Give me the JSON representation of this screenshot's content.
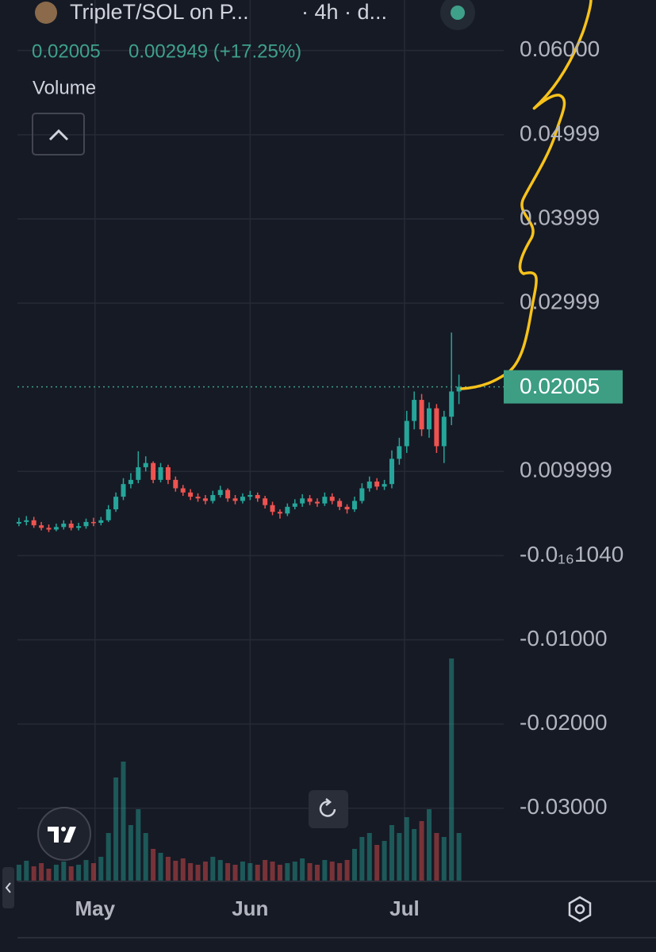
{
  "header": {
    "symbol": "TripleT/SOL on P...",
    "interval": "· 4h · d...",
    "price": "0.02005",
    "change": "0.002949 (+17.25%)",
    "study": "Volume"
  },
  "chart_data": {
    "type": "candlestick",
    "up_color": "#26a69a",
    "down_color": "#ef5350",
    "open": [
      0.0038,
      0.004,
      0.0042,
      0.0036,
      0.0033,
      0.0031,
      0.0034,
      0.0038,
      0.0033,
      0.0035,
      0.004,
      0.0039,
      0.0042,
      0.0055,
      0.007,
      0.0085,
      0.009,
      0.0105,
      0.011,
      0.009,
      0.0105,
      0.009,
      0.008,
      0.0075,
      0.007,
      0.0068,
      0.0065,
      0.0072,
      0.0078,
      0.0068,
      0.0065,
      0.007,
      0.0072,
      0.0068,
      0.006,
      0.0052,
      0.005,
      0.0058,
      0.0062,
      0.0068,
      0.0064,
      0.0062,
      0.007,
      0.0065,
      0.0058,
      0.0055,
      0.0065,
      0.008,
      0.0088,
      0.0082,
      0.0085,
      0.0115,
      0.013,
      0.016,
      0.0185,
      0.015,
      0.0175,
      0.013,
      0.0165,
      0.0195
    ],
    "high": [
      0.0045,
      0.0047,
      0.0046,
      0.004,
      0.0037,
      0.0038,
      0.0042,
      0.0042,
      0.0039,
      0.0044,
      0.0045,
      0.0046,
      0.006,
      0.0075,
      0.0092,
      0.0098,
      0.0124,
      0.0118,
      0.0112,
      0.011,
      0.0108,
      0.0094,
      0.0084,
      0.0079,
      0.0074,
      0.0072,
      0.0077,
      0.0083,
      0.008,
      0.0072,
      0.0074,
      0.0077,
      0.0075,
      0.0071,
      0.0064,
      0.0055,
      0.0062,
      0.0067,
      0.0073,
      0.0072,
      0.0068,
      0.0075,
      0.0074,
      0.0068,
      0.0061,
      0.007,
      0.0086,
      0.0094,
      0.0092,
      0.009,
      0.0125,
      0.014,
      0.0172,
      0.0195,
      0.0192,
      0.0182,
      0.018,
      0.0172,
      0.0265,
      0.0215
    ],
    "low": [
      0.0035,
      0.0036,
      0.0033,
      0.003,
      0.0028,
      0.0029,
      0.0031,
      0.003,
      0.003,
      0.0032,
      0.0035,
      0.0036,
      0.004,
      0.0052,
      0.0066,
      0.008,
      0.0086,
      0.01,
      0.0086,
      0.0087,
      0.0085,
      0.0076,
      0.0071,
      0.0066,
      0.0064,
      0.0061,
      0.0062,
      0.0069,
      0.0064,
      0.0061,
      0.0062,
      0.0066,
      0.0064,
      0.0056,
      0.0048,
      0.0044,
      0.0047,
      0.0055,
      0.0058,
      0.006,
      0.0058,
      0.0059,
      0.0061,
      0.0054,
      0.005,
      0.0052,
      0.0062,
      0.0076,
      0.0078,
      0.0078,
      0.008,
      0.0108,
      0.0122,
      0.015,
      0.0142,
      0.014,
      0.0122,
      0.011,
      0.0155,
      0.018
    ],
    "close": [
      0.004,
      0.0042,
      0.0036,
      0.0033,
      0.0031,
      0.0034,
      0.0038,
      0.0033,
      0.0035,
      0.004,
      0.0039,
      0.0042,
      0.0055,
      0.007,
      0.0085,
      0.009,
      0.0105,
      0.011,
      0.009,
      0.0105,
      0.009,
      0.008,
      0.0075,
      0.007,
      0.0068,
      0.0065,
      0.0072,
      0.0078,
      0.0068,
      0.0065,
      0.007,
      0.0072,
      0.0068,
      0.006,
      0.0052,
      0.005,
      0.0058,
      0.0062,
      0.0068,
      0.0064,
      0.0062,
      0.007,
      0.0065,
      0.0058,
      0.0055,
      0.0065,
      0.008,
      0.0088,
      0.0082,
      0.0085,
      0.0115,
      0.013,
      0.016,
      0.0185,
      0.015,
      0.0175,
      0.013,
      0.0165,
      0.0195,
      0.02005
    ],
    "volume": [
      20,
      25,
      18,
      22,
      15,
      20,
      24,
      18,
      20,
      26,
      22,
      30,
      60,
      130,
      150,
      70,
      90,
      60,
      40,
      35,
      30,
      25,
      28,
      22,
      20,
      24,
      30,
      26,
      22,
      20,
      24,
      22,
      20,
      26,
      24,
      20,
      22,
      24,
      28,
      22,
      20,
      26,
      24,
      22,
      26,
      40,
      55,
      60,
      45,
      50,
      70,
      60,
      80,
      65,
      75,
      90,
      60,
      55,
      280,
      60
    ],
    "xlim": [
      -0.2,
      65
    ],
    "xticks": [
      {
        "value": 10.2,
        "label": "May"
      },
      {
        "value": 31,
        "label": "Jun"
      },
      {
        "value": 51.7,
        "label": "Jul"
      }
    ],
    "ylim": [
      -0.0386,
      0.066
    ],
    "yticks": [
      {
        "value": 0.06,
        "label": "0.06000"
      },
      {
        "value": 0.04999,
        "label": "0.04999"
      },
      {
        "value": 0.03999,
        "label": "0.03999"
      },
      {
        "value": 0.02999,
        "label": "0.02999"
      },
      0.009999,
      {
        "value": -1.04e-17,
        "label": "-0.0₁₆1040"
      },
      {
        "value": -0.01,
        "label": "-0.01000"
      },
      {
        "value": -0.02,
        "label": "-0.02000"
      },
      {
        "value": -0.03,
        "label": "-0.03000"
      }
    ],
    "grid": true
  }
}
